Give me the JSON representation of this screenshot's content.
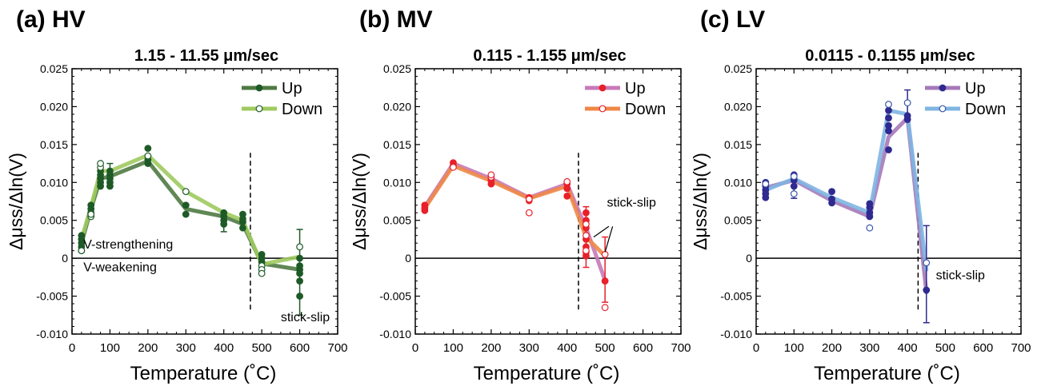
{
  "figure": {
    "shared_ylabel": "Δμss/Δln(V)",
    "shared_xlabel": "Temperature (˚C)"
  },
  "chart_data": [
    {
      "type": "line",
      "panel_label": "(a) HV",
      "title": "1.15 - 11.55 μm/sec",
      "xlabel": "Temperature (˚C)",
      "ylabel": "Δμss/Δln(V)",
      "xlim": [
        0,
        700
      ],
      "ylim": [
        -0.01,
        0.025
      ],
      "x_ticks": [
        "0",
        "100",
        "200",
        "300",
        "400",
        "500",
        "600",
        "700"
      ],
      "y_ticks": [
        "-0.010",
        "-0.005",
        "0",
        "0.005",
        "0.010",
        "0.015",
        "0.020",
        "0.025"
      ],
      "legend": "top-right",
      "zero_line": true,
      "vline_x": 470,
      "annotations": [
        {
          "text": "V-strengthening",
          "x": 30,
          "y": 0.0013
        },
        {
          "text": "V-weakening",
          "x": 30,
          "y": -0.0017
        },
        {
          "text": "stick-slip",
          "x": 550,
          "y": -0.0083
        }
      ],
      "colors": {
        "points": "#1e5a27",
        "empty_points": "#1e5a27"
      },
      "series": [
        {
          "name": "Up",
          "color": "#4f7a43",
          "x": [
            25,
            50,
            75,
            100,
            200,
            300,
            400,
            450,
            500,
            600
          ],
          "y": [
            0.002,
            0.0065,
            0.0105,
            0.0108,
            0.0128,
            0.0065,
            0.0055,
            0.0045,
            -0.0007,
            -0.0015
          ]
        },
        {
          "name": "Down",
          "color": "#9fca5f",
          "x": [
            25,
            50,
            75,
            100,
            200,
            300,
            400,
            450,
            500,
            600
          ],
          "y": [
            0.0025,
            0.0068,
            0.0115,
            0.0115,
            0.0136,
            0.0088,
            0.006,
            0.005,
            -0.0008,
            0.0002
          ]
        }
      ],
      "scatter": [
        {
          "x": 25,
          "y": 0.001,
          "open": false
        },
        {
          "x": 25,
          "y": 0.0015,
          "open": false
        },
        {
          "x": 25,
          "y": 0.002,
          "open": false
        },
        {
          "x": 25,
          "y": 0.0025,
          "open": false
        },
        {
          "x": 25,
          "y": 0.003,
          "open": false
        },
        {
          "x": 25,
          "y": 0.001,
          "open": true
        },
        {
          "x": 50,
          "y": 0.006,
          "open": false
        },
        {
          "x": 50,
          "y": 0.0065,
          "open": false
        },
        {
          "x": 50,
          "y": 0.007,
          "open": false
        },
        {
          "x": 50,
          "y": 0.0055,
          "open": true
        },
        {
          "x": 50,
          "y": 0.0058,
          "open": true
        },
        {
          "x": 75,
          "y": 0.0095,
          "open": false
        },
        {
          "x": 75,
          "y": 0.01,
          "open": false
        },
        {
          "x": 75,
          "y": 0.0105,
          "open": false
        },
        {
          "x": 75,
          "y": 0.011,
          "open": false
        },
        {
          "x": 75,
          "y": 0.0115,
          "open": false
        },
        {
          "x": 75,
          "y": 0.012,
          "open": true
        },
        {
          "x": 75,
          "y": 0.0125,
          "open": true
        },
        {
          "x": 100,
          "y": 0.0095,
          "open": false
        },
        {
          "x": 100,
          "y": 0.01,
          "open": false
        },
        {
          "x": 100,
          "y": 0.0105,
          "open": false
        },
        {
          "x": 100,
          "y": 0.011,
          "open": false
        },
        {
          "x": 100,
          "y": 0.0115,
          "open": false
        },
        {
          "x": 200,
          "y": 0.0125,
          "open": false
        },
        {
          "x": 200,
          "y": 0.013,
          "open": false
        },
        {
          "x": 200,
          "y": 0.0135,
          "open": true
        },
        {
          "x": 200,
          "y": 0.0145,
          "open": false
        },
        {
          "x": 300,
          "y": 0.0058,
          "open": false
        },
        {
          "x": 300,
          "y": 0.007,
          "open": false
        },
        {
          "x": 300,
          "y": 0.0088,
          "open": true
        },
        {
          "x": 400,
          "y": 0.0045,
          "open": false
        },
        {
          "x": 400,
          "y": 0.005,
          "open": false
        },
        {
          "x": 400,
          "y": 0.0055,
          "open": false
        },
        {
          "x": 400,
          "y": 0.006,
          "open": false
        },
        {
          "x": 450,
          "y": 0.004,
          "open": false
        },
        {
          "x": 450,
          "y": 0.0048,
          "open": false
        },
        {
          "x": 450,
          "y": 0.0052,
          "open": false
        },
        {
          "x": 450,
          "y": 0.0058,
          "open": false
        },
        {
          "x": 500,
          "y": 0.0005,
          "open": false
        },
        {
          "x": 500,
          "y": 0,
          "open": false
        },
        {
          "x": 500,
          "y": -0.0005,
          "open": false
        },
        {
          "x": 500,
          "y": -0.001,
          "open": true
        },
        {
          "x": 500,
          "y": -0.0015,
          "open": true
        },
        {
          "x": 500,
          "y": -0.002,
          "open": true
        },
        {
          "x": 600,
          "y": -0.005,
          "open": false
        },
        {
          "x": 600,
          "y": -0.003,
          "open": false
        },
        {
          "x": 600,
          "y": -0.002,
          "open": false
        },
        {
          "x": 600,
          "y": -0.0015,
          "open": false
        },
        {
          "x": 600,
          "y": -0.001,
          "open": false
        },
        {
          "x": 600,
          "y": 0,
          "open": false
        },
        {
          "x": 600,
          "y": 0.0015,
          "open": true
        }
      ],
      "error_bars": [
        {
          "x": 100,
          "y": 0.0115,
          "low": 0.0105,
          "high": 0.0125
        },
        {
          "x": 400,
          "y": 0.0045,
          "low": 0.0035,
          "high": 0.0055
        },
        {
          "x": 600,
          "y": -0.005,
          "low": -0.0075,
          "high": 0.0038
        }
      ]
    },
    {
      "type": "line",
      "panel_label": "(b) MV",
      "title": "0.115 - 1.155 μm/sec",
      "xlabel": "Temperature (˚C)",
      "ylabel": "Δμss/Δln(V)",
      "xlim": [
        0,
        700
      ],
      "ylim": [
        -0.01,
        0.025
      ],
      "x_ticks": [
        "0",
        "100",
        "200",
        "300",
        "400",
        "500",
        "600",
        "700"
      ],
      "y_ticks": [
        "-0.010",
        "-0.005",
        "0",
        "0.005",
        "0.010",
        "0.015",
        "0.020",
        "0.025"
      ],
      "legend": "top-right",
      "zero_line": true,
      "vline_x": 430,
      "annotations": [
        {
          "text": "stick-slip",
          "x": 505,
          "y": 0.0068
        }
      ],
      "stick_slip_pointers": [
        {
          "from_x": 510,
          "from_y": 0.0042,
          "to_x": 470,
          "to_y": 0.0028
        },
        {
          "from_x": 520,
          "from_y": 0.0042,
          "to_x": 500,
          "to_y": 0.0008
        }
      ],
      "colors": {
        "points": "#e8202a",
        "empty_points": "#e8202a"
      },
      "series": [
        {
          "name": "Up",
          "color": "#c879b8",
          "x": [
            25,
            100,
            200,
            300,
            400,
            450,
            500
          ],
          "y": [
            0.0068,
            0.0125,
            0.0105,
            0.008,
            0.0098,
            0.004,
            -0.0029
          ]
        },
        {
          "name": "Down",
          "color": "#ee8847",
          "x": [
            25,
            100,
            200,
            300,
            400,
            450,
            500
          ],
          "y": [
            0.0066,
            0.0122,
            0.0102,
            0.0079,
            0.0095,
            0.0028,
            0.0003
          ]
        }
      ],
      "scatter": [
        {
          "x": 25,
          "y": 0.0063,
          "open": false
        },
        {
          "x": 25,
          "y": 0.0066,
          "open": false
        },
        {
          "x": 25,
          "y": 0.007,
          "open": false
        },
        {
          "x": 100,
          "y": 0.0122,
          "open": false
        },
        {
          "x": 100,
          "y": 0.0126,
          "open": false
        },
        {
          "x": 100,
          "y": 0.012,
          "open": true
        },
        {
          "x": 200,
          "y": 0.0098,
          "open": false
        },
        {
          "x": 200,
          "y": 0.0103,
          "open": false
        },
        {
          "x": 200,
          "y": 0.0107,
          "open": true
        },
        {
          "x": 200,
          "y": 0.011,
          "open": true
        },
        {
          "x": 300,
          "y": 0.0076,
          "open": false
        },
        {
          "x": 300,
          "y": 0.008,
          "open": false
        },
        {
          "x": 300,
          "y": 0.006,
          "open": true
        },
        {
          "x": 300,
          "y": 0.0078,
          "open": true
        },
        {
          "x": 400,
          "y": 0.0082,
          "open": false
        },
        {
          "x": 400,
          "y": 0.0092,
          "open": false
        },
        {
          "x": 400,
          "y": 0.0098,
          "open": false
        },
        {
          "x": 400,
          "y": 0.0101,
          "open": true
        },
        {
          "x": 450,
          "y": 0.006,
          "open": false
        },
        {
          "x": 450,
          "y": 0.005,
          "open": false
        },
        {
          "x": 450,
          "y": 0.004,
          "open": false
        },
        {
          "x": 450,
          "y": 0.0025,
          "open": false
        },
        {
          "x": 450,
          "y": 0.0015,
          "open": false
        },
        {
          "x": 450,
          "y": 0.0008,
          "open": false
        },
        {
          "x": 450,
          "y": 0.0003,
          "open": false
        },
        {
          "x": 450,
          "y": 0.003,
          "open": true
        },
        {
          "x": 450,
          "y": 0.0045,
          "open": true
        },
        {
          "x": 450,
          "y": 0.001,
          "open": true
        },
        {
          "x": 500,
          "y": -0.003,
          "open": false
        },
        {
          "x": 500,
          "y": 0.0005,
          "open": true
        },
        {
          "x": 500,
          "y": -0.0065,
          "open": true
        }
      ],
      "error_bars": [
        {
          "x": 450,
          "y": 0.0005,
          "low": -0.0012,
          "high": 0.0068
        },
        {
          "x": 500,
          "y": -0.003,
          "low": -0.0058,
          "high": 0.0028
        }
      ]
    },
    {
      "type": "line",
      "panel_label": "(c) LV",
      "title": "0.0115 - 0.1155 μm/sec",
      "xlabel": "Temperature (˚C)",
      "ylabel": "Δμss/Δln(V)",
      "xlim": [
        0,
        700
      ],
      "ylim": [
        -0.01,
        0.025
      ],
      "x_ticks": [
        "0",
        "100",
        "200",
        "300",
        "400",
        "500",
        "600",
        "700"
      ],
      "y_ticks": [
        "-0.010",
        "-0.005",
        "0",
        "0.005",
        "0.010",
        "0.015",
        "0.020",
        "0.025"
      ],
      "legend": "top-right",
      "zero_line": true,
      "vline_x": 428,
      "annotations": [
        {
          "text": "stick-slip",
          "x": 475,
          "y": -0.0028
        }
      ],
      "colors": {
        "points": "#2e2a8f",
        "empty_points": "#3957a8"
      },
      "series": [
        {
          "name": "Up",
          "color": "#a679b9",
          "x": [
            25,
            100,
            200,
            300,
            350,
            400,
            450
          ],
          "y": [
            0.0093,
            0.0103,
            0.0076,
            0.0055,
            0.016,
            0.0185,
            -0.0045
          ]
        },
        {
          "name": "Down",
          "color": "#7fb5e2",
          "x": [
            25,
            100,
            200,
            300,
            350,
            400,
            450
          ],
          "y": [
            0.009,
            0.0105,
            0.008,
            0.006,
            0.0195,
            0.019,
            -0.0015
          ]
        }
      ],
      "scatter": [
        {
          "x": 25,
          "y": 0.008,
          "open": false
        },
        {
          "x": 25,
          "y": 0.0085,
          "open": false
        },
        {
          "x": 25,
          "y": 0.009,
          "open": false
        },
        {
          "x": 25,
          "y": 0.0095,
          "open": false
        },
        {
          "x": 25,
          "y": 0.01,
          "open": false
        },
        {
          "x": 25,
          "y": 0.0098,
          "open": true
        },
        {
          "x": 100,
          "y": 0.0095,
          "open": false
        },
        {
          "x": 100,
          "y": 0.0103,
          "open": false
        },
        {
          "x": 100,
          "y": 0.011,
          "open": false
        },
        {
          "x": 100,
          "y": 0.0085,
          "open": true
        },
        {
          "x": 100,
          "y": 0.0108,
          "open": true
        },
        {
          "x": 200,
          "y": 0.0073,
          "open": false
        },
        {
          "x": 200,
          "y": 0.0078,
          "open": false
        },
        {
          "x": 200,
          "y": 0.0088,
          "open": false
        },
        {
          "x": 300,
          "y": 0.0055,
          "open": false
        },
        {
          "x": 300,
          "y": 0.006,
          "open": false
        },
        {
          "x": 300,
          "y": 0.0067,
          "open": false
        },
        {
          "x": 300,
          "y": 0.0072,
          "open": false
        },
        {
          "x": 300,
          "y": 0.004,
          "open": true
        },
        {
          "x": 350,
          "y": 0.0143,
          "open": false
        },
        {
          "x": 350,
          "y": 0.0168,
          "open": false
        },
        {
          "x": 350,
          "y": 0.0175,
          "open": false
        },
        {
          "x": 350,
          "y": 0.0185,
          "open": false
        },
        {
          "x": 350,
          "y": 0.0195,
          "open": false
        },
        {
          "x": 350,
          "y": 0.0203,
          "open": true
        },
        {
          "x": 400,
          "y": 0.0183,
          "open": false
        },
        {
          "x": 400,
          "y": 0.0188,
          "open": false
        },
        {
          "x": 400,
          "y": 0.0205,
          "open": true
        },
        {
          "x": 450,
          "y": -0.0042,
          "open": false
        },
        {
          "x": 450,
          "y": -0.0006,
          "open": true
        }
      ],
      "error_bars": [
        {
          "x": 100,
          "y": 0.0095,
          "low": 0.0079,
          "high": 0.0111
        },
        {
          "x": 400,
          "y": 0.0205,
          "low": 0.0185,
          "high": 0.0222
        },
        {
          "x": 450,
          "y": -0.0042,
          "low": -0.0085,
          "high": 0.0043
        }
      ]
    }
  ]
}
